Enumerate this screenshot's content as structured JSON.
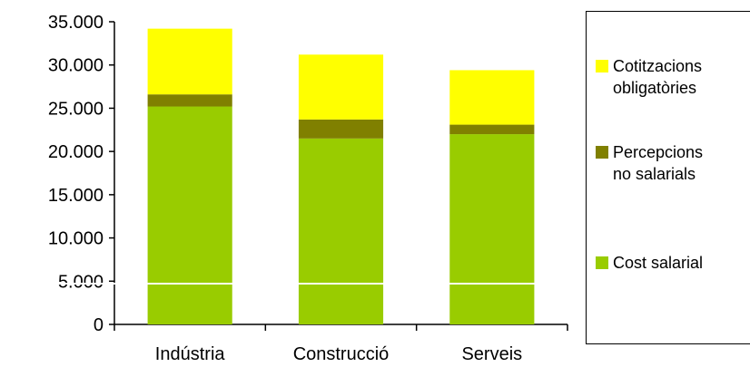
{
  "chart_data": {
    "type": "bar",
    "stacked": true,
    "categories": [
      "Indústria",
      "Construcció",
      "Serveis"
    ],
    "series": [
      {
        "name": "Cost salarial",
        "color": "#99CC00",
        "values": [
          25200,
          21500,
          22000
        ]
      },
      {
        "name": "Percepcions no salarials",
        "color": "#808000",
        "values": [
          1400,
          2200,
          1100
        ]
      },
      {
        "name": "Cotitzacions obligatòries",
        "color": "#FFFF00",
        "values": [
          7600,
          7500,
          6300
        ]
      }
    ],
    "y_ticks": [
      "0",
      "5.000",
      "10.000",
      "15.000",
      "20.000",
      "25.000",
      "30.000",
      "35.000"
    ],
    "ylim": [
      0,
      35000
    ],
    "legend_position": "right",
    "grid": false
  },
  "legend": {
    "items": [
      {
        "label": "Cotitzacions\nobligatòries",
        "color": "#FFFF00"
      },
      {
        "label": "Percepcions\nno salarials",
        "color": "#808000"
      },
      {
        "label": "Cost salarial",
        "color": "#99CC00"
      }
    ]
  }
}
